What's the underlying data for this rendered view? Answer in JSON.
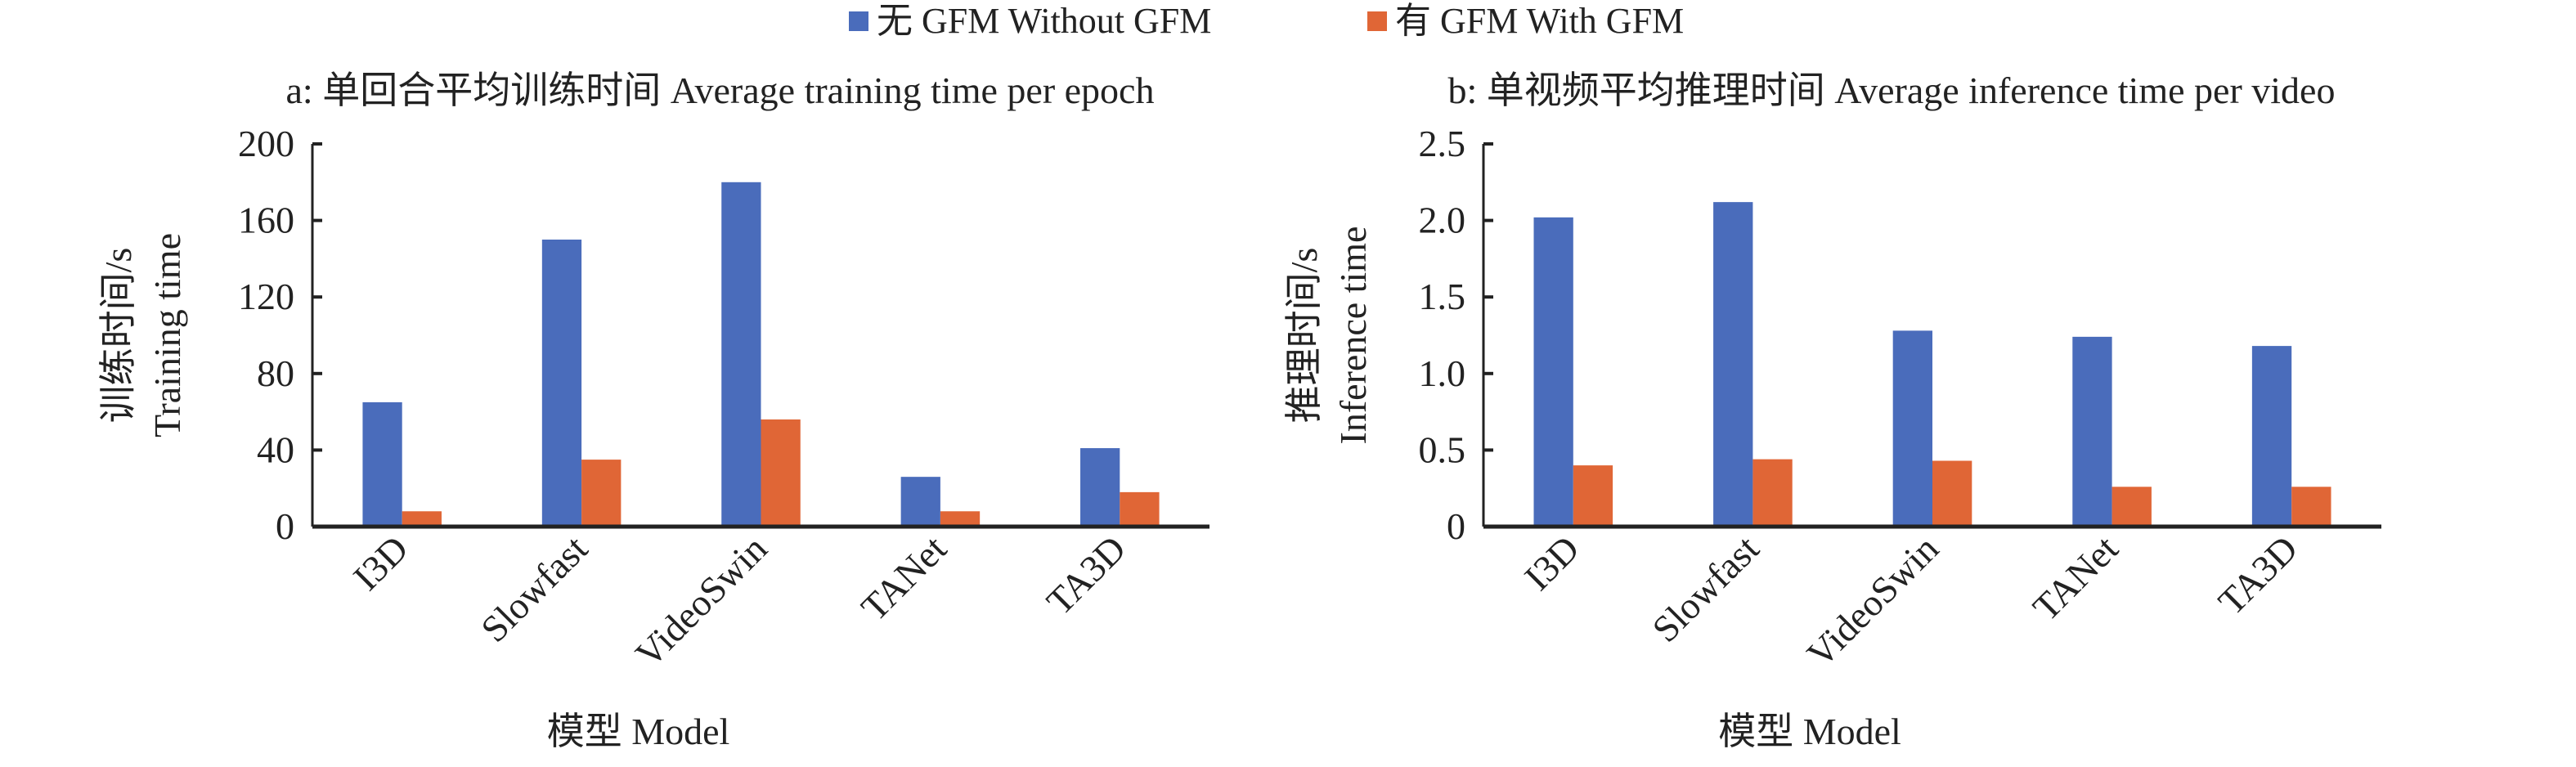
{
  "legend": [
    {
      "label": "无 GFM Without GFM",
      "color": "#4a6cbb"
    },
    {
      "label": "有 GFM With GFM",
      "color": "#e06636"
    }
  ],
  "chart_data": [
    {
      "type": "bar",
      "title": "a: 单回合平均训练时间 Average training time per epoch",
      "xlabel": "模型 Model",
      "ylabel": [
        "训练时间/s",
        "Training time"
      ],
      "categories": [
        "I3D",
        "Slowfast",
        "VideoSwin",
        "TANet",
        "TA3D"
      ],
      "ylim": [
        0,
        200
      ],
      "yticks": [
        "0",
        "40",
        "80",
        "120",
        "160",
        "200"
      ],
      "ytick_values": [
        0,
        40,
        80,
        120,
        160,
        200
      ],
      "series": [
        {
          "name": "无 GFM Without GFM",
          "values": [
            65,
            150,
            180,
            26,
            41
          ]
        },
        {
          "name": "有 GFM With GFM",
          "values": [
            8,
            35,
            56,
            8,
            18
          ]
        }
      ]
    },
    {
      "type": "bar",
      "title": "b: 单视频平均推理时间 Average inference time per video",
      "xlabel": "模型 Model",
      "ylabel": [
        "推理时间/s",
        "Inference time"
      ],
      "categories": [
        "I3D",
        "Slowfast",
        "VideoSwin",
        "TANet",
        "TA3D"
      ],
      "ylim": [
        0,
        2.5
      ],
      "yticks": [
        "0",
        "0.5",
        "1.0",
        "1.5",
        "2.0",
        "2.5"
      ],
      "ytick_values": [
        0,
        0.5,
        1.0,
        1.5,
        2.0,
        2.5
      ],
      "series": [
        {
          "name": "无 GFM Without GFM",
          "values": [
            2.02,
            2.12,
            1.28,
            1.24,
            1.18
          ]
        },
        {
          "name": "有 GFM With GFM",
          "values": [
            0.4,
            0.44,
            0.43,
            0.26,
            0.26
          ]
        }
      ]
    }
  ]
}
